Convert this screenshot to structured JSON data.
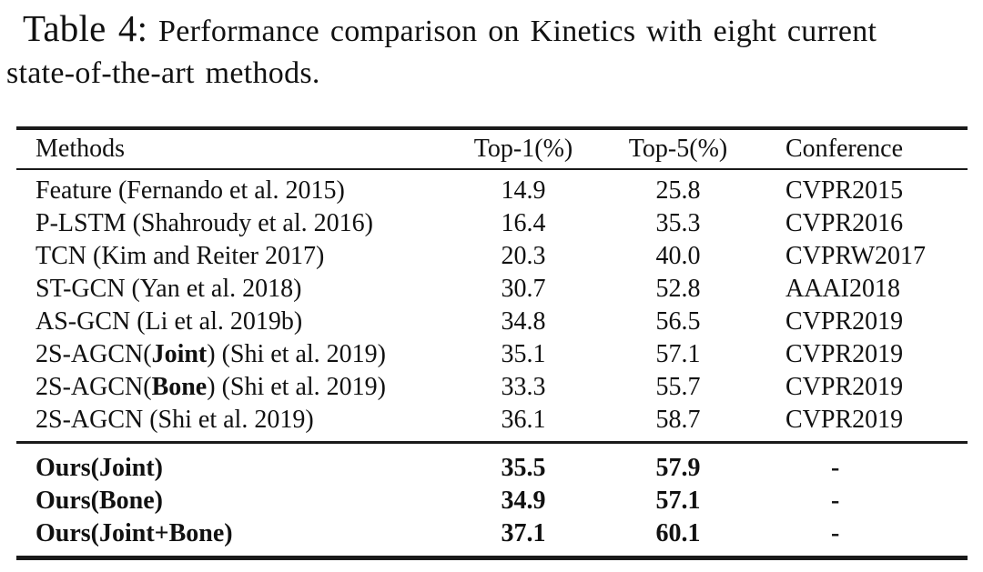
{
  "caption": {
    "label": "Table 4:",
    "line1": "Performance comparison on Kinetics with eight current",
    "line2": "state-of-the-art methods."
  },
  "table": {
    "columns": [
      "Methods",
      "Top-1(%)",
      "Top-5(%)",
      "Conference"
    ],
    "sota_rows": [
      {
        "method": [
          {
            "text": "Feature (Fernando et al. 2015)",
            "bold": false
          }
        ],
        "top1": "14.9",
        "top5": "25.8",
        "conf": "CVPR2015",
        "bold": false
      },
      {
        "method": [
          {
            "text": "P-LSTM (Shahroudy et al. 2016)",
            "bold": false
          }
        ],
        "top1": "16.4",
        "top5": "35.3",
        "conf": "CVPR2016",
        "bold": false
      },
      {
        "method": [
          {
            "text": "TCN (Kim and Reiter 2017)",
            "bold": false
          }
        ],
        "top1": "20.3",
        "top5": "40.0",
        "conf": "CVPRW2017",
        "bold": false
      },
      {
        "method": [
          {
            "text": "ST-GCN (Yan et al. 2018)",
            "bold": false
          }
        ],
        "top1": "30.7",
        "top5": "52.8",
        "conf": "AAAI2018",
        "bold": false
      },
      {
        "method": [
          {
            "text": "AS-GCN (Li et al. 2019b)",
            "bold": false
          }
        ],
        "top1": "34.8",
        "top5": "56.5",
        "conf": "CVPR2019",
        "bold": false
      },
      {
        "method": [
          {
            "text": "2S-AGCN(",
            "bold": false
          },
          {
            "text": "Joint",
            "bold": true
          },
          {
            "text": ") (Shi et al. 2019)",
            "bold": false
          }
        ],
        "top1": "35.1",
        "top5": "57.1",
        "conf": "CVPR2019",
        "bold": false
      },
      {
        "method": [
          {
            "text": "2S-AGCN(",
            "bold": false
          },
          {
            "text": "Bone",
            "bold": true
          },
          {
            "text": ") (Shi et al. 2019)",
            "bold": false
          }
        ],
        "top1": "33.3",
        "top5": "55.7",
        "conf": "CVPR2019",
        "bold": false
      },
      {
        "method": [
          {
            "text": "2S-AGCN (Shi et al. 2019)",
            "bold": false
          }
        ],
        "top1": "36.1",
        "top5": "58.7",
        "conf": "CVPR2019",
        "bold": false
      }
    ],
    "ours_rows": [
      {
        "method": [
          {
            "text": "Ours(Joint)",
            "bold": true
          }
        ],
        "top1": "35.5",
        "top5": "57.9",
        "conf": "-",
        "bold": true
      },
      {
        "method": [
          {
            "text": "Ours(Bone)",
            "bold": true
          }
        ],
        "top1": "34.9",
        "top5": "57.1",
        "conf": "-",
        "bold": true
      },
      {
        "method": [
          {
            "text": "Ours(Joint+Bone)",
            "bold": true
          }
        ],
        "top1": "37.1",
        "top5": "60.1",
        "conf": "-",
        "bold": true
      }
    ]
  },
  "colors": {
    "background": "#ffffff",
    "text": "#111111",
    "rule": "#1a1a1a"
  }
}
